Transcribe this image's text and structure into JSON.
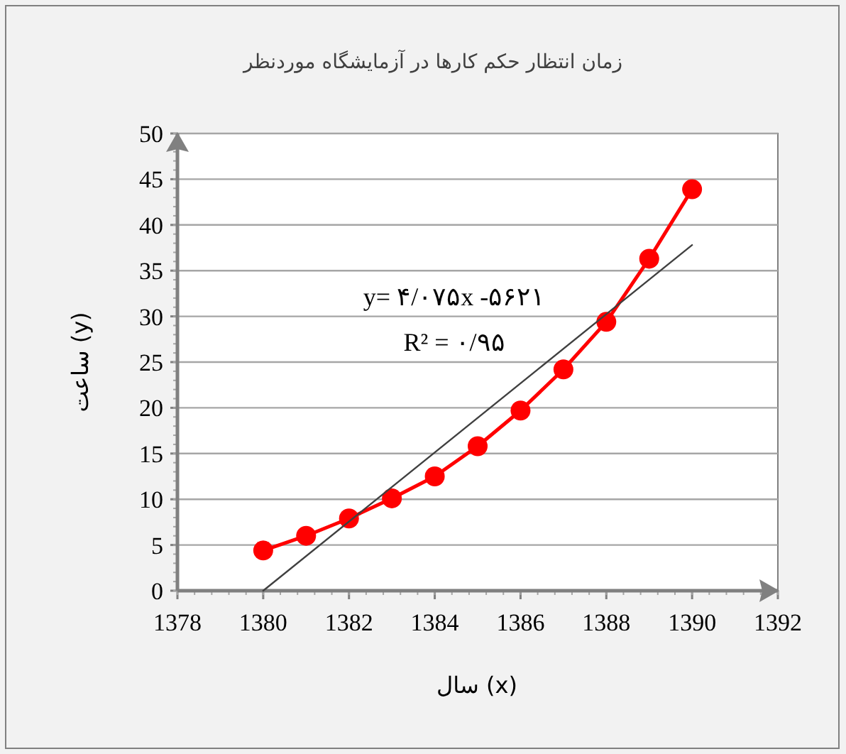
{
  "chart_data": {
    "type": "line",
    "title": "زمان انتظار حکم کارها در آزمایشگاه موردنظر",
    "xlabel": "سال (x)",
    "ylabel": "ساعت (y)",
    "x": [
      1380,
      1381,
      1382,
      1383,
      1384,
      1385,
      1386,
      1387,
      1388,
      1389,
      1390
    ],
    "series": [
      {
        "color": "#ff0000",
        "marker": "circle",
        "values": [
          4.4,
          6.0,
          7.9,
          10.1,
          12.5,
          15.8,
          19.7,
          24.2,
          29.4,
          36.3,
          43.9
        ]
      },
      {
        "type": "line",
        "color": "#404040",
        "marker": "none",
        "x": [
          1380,
          1390
        ],
        "values": [
          0,
          37.8
        ]
      }
    ],
    "annotations": [
      "y= ۴/۰۷۵x -۵۶۲۱",
      "R² = ۰/۹۵"
    ],
    "xlim": [
      1378,
      1392
    ],
    "xticks": [
      1378,
      1380,
      1382,
      1384,
      1386,
      1388,
      1390,
      1392
    ],
    "ylim": [
      0,
      50
    ],
    "yticks": [
      0,
      5,
      10,
      15,
      20,
      25,
      30,
      35,
      40,
      45,
      50
    ],
    "grid": "y"
  }
}
